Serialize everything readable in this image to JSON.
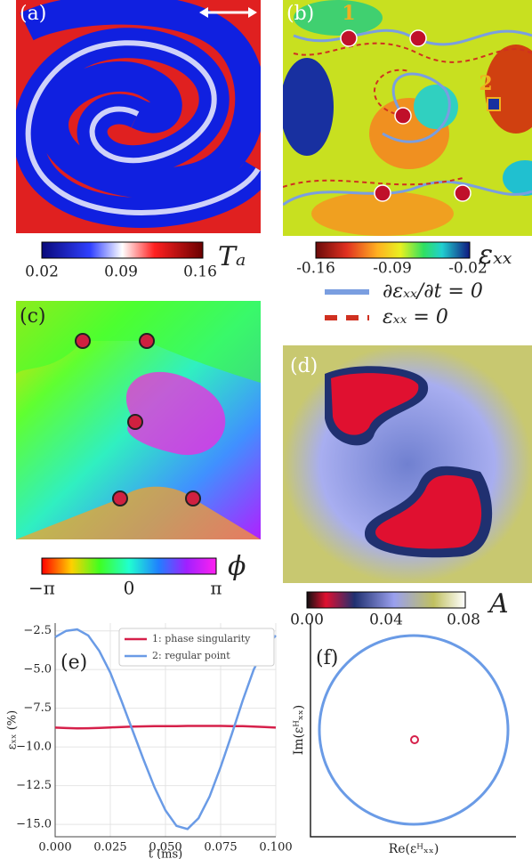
{
  "panels": {
    "a": {
      "label": "(a)",
      "colorbar_ticks": [
        "0.02",
        "0.09",
        "0.16"
      ],
      "colorbar_label": "Tₐ"
    },
    "b": {
      "label": "(b)",
      "points": [
        "1",
        "2"
      ],
      "colorbar_ticks": [
        "-0.16",
        "-0.09",
        "-0.02"
      ],
      "colorbar_label": "εₓₓ",
      "legend": [
        "∂εₓₓ/∂t = 0",
        "εₓₓ = 0"
      ]
    },
    "c": {
      "label": "(c)",
      "colorbar_ticks": [
        "−π",
        "0",
        "π"
      ],
      "colorbar_label": "ϕ"
    },
    "d": {
      "label": "(d)",
      "colorbar_ticks": [
        "0.00",
        "0.04",
        "0.08"
      ],
      "colorbar_label": "A"
    },
    "f": {
      "label": "(f)",
      "xlabel": "Re(εᴴₓₓ)",
      "ylabel": "Im(εᴴₓₓ)"
    }
  },
  "chart_data": {
    "type": "line",
    "label": "(e)",
    "xlabel": "t (ms)",
    "ylabel": "εₓₓ (%)",
    "x": [
      0,
      0.005,
      0.01,
      0.015,
      0.02,
      0.025,
      0.03,
      0.035,
      0.04,
      0.045,
      0.05,
      0.055,
      0.06,
      0.065,
      0.07,
      0.075,
      0.08,
      0.085,
      0.09,
      0.095,
      0.1
    ],
    "series": [
      {
        "name": "1: phase singularity",
        "color": "#d6204a",
        "values": [
          -8.75,
          -8.78,
          -8.8,
          -8.79,
          -8.77,
          -8.74,
          -8.71,
          -8.69,
          -8.67,
          -8.66,
          -8.65,
          -8.65,
          -8.64,
          -8.64,
          -8.64,
          -8.64,
          -8.65,
          -8.66,
          -8.68,
          -8.71,
          -8.75
        ]
      },
      {
        "name": "2: regular point",
        "color": "#6a9be6",
        "values": [
          -2.9,
          -2.5,
          -2.4,
          -2.8,
          -3.8,
          -5.2,
          -7.0,
          -8.9,
          -10.8,
          -12.6,
          -14.1,
          -15.1,
          -15.3,
          -14.6,
          -13.2,
          -11.3,
          -9.2,
          -7.0,
          -5.0,
          -3.6,
          -2.8
        ]
      }
    ],
    "xlim": [
      0,
      0.1
    ],
    "ylim": [
      -15.8,
      -2.0
    ],
    "xticks": [
      {
        "value": 0,
        "label": "0.000"
      },
      {
        "value": 0.025,
        "label": "0.025"
      },
      {
        "value": 0.05,
        "label": "0.050"
      },
      {
        "value": 0.075,
        "label": "0.075"
      },
      {
        "value": 0.1,
        "label": "0.100"
      }
    ],
    "yticks": [
      {
        "value": -2.5,
        "label": "−2.5"
      },
      {
        "value": -5,
        "label": "−5.0"
      },
      {
        "value": -7.5,
        "label": "−7.5"
      },
      {
        "value": -10,
        "label": "−10.0"
      },
      {
        "value": -12.5,
        "label": "−12.5"
      },
      {
        "value": -15,
        "label": "−15.0"
      }
    ],
    "grid": true
  }
}
